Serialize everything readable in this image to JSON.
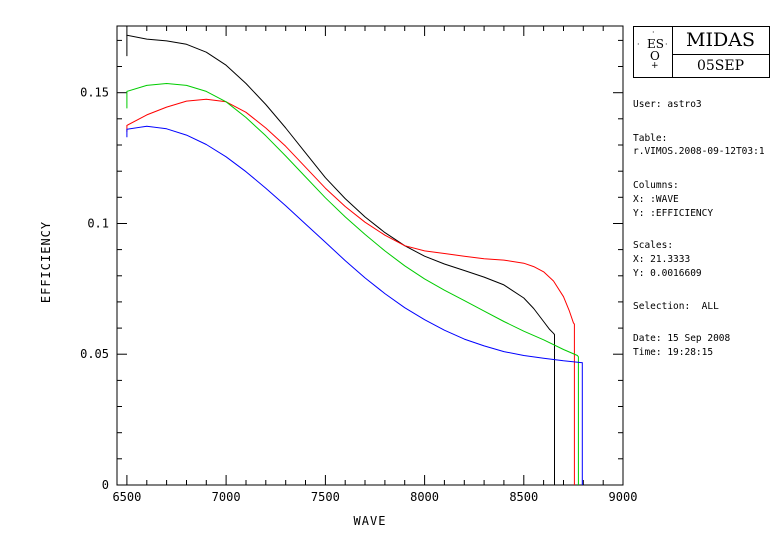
{
  "chart_data": {
    "type": "line",
    "title": "",
    "xlabel": "WAVE",
    "ylabel": "EFFICIENCY",
    "xlim": [
      6450,
      9000
    ],
    "ylim": [
      0,
      0.1755
    ],
    "xticks": [
      6500,
      7000,
      7500,
      8000,
      8500,
      9000
    ],
    "xtick_labels": [
      "6500",
      "7000",
      "7500",
      "8000",
      "8500",
      "9000"
    ],
    "yticks": [
      0,
      0.05,
      0.1,
      0.15
    ],
    "ytick_labels": [
      "0",
      "0.05",
      "0.1",
      "0.15"
    ],
    "grid": false,
    "series": [
      {
        "color": "#000000",
        "x": [
          6500,
          6500,
          6600,
          6700,
          6800,
          6900,
          7000,
          7100,
          7200,
          7300,
          7400,
          7500,
          7600,
          7700,
          7800,
          7900,
          8000,
          8100,
          8200,
          8300,
          8400,
          8500,
          8550,
          8600,
          8630,
          8650,
          8655,
          8655
        ],
        "y": [
          0.164,
          0.172,
          0.1705,
          0.1698,
          0.1685,
          0.1655,
          0.1605,
          0.1535,
          0.1455,
          0.1365,
          0.127,
          0.1175,
          0.1095,
          0.1025,
          0.0965,
          0.0915,
          0.0875,
          0.0845,
          0.082,
          0.0795,
          0.0765,
          0.0715,
          0.0675,
          0.0625,
          0.0595,
          0.058,
          0.0575,
          0
        ]
      },
      {
        "color": "#ff0000",
        "x": [
          6500,
          6500,
          6600,
          6700,
          6800,
          6900,
          7000,
          7100,
          7200,
          7300,
          7400,
          7500,
          7600,
          7700,
          7800,
          7900,
          8000,
          8100,
          8200,
          8300,
          8400,
          8500,
          8550,
          8600,
          8650,
          8700,
          8730,
          8750,
          8755,
          8755
        ],
        "y": [
          0.135,
          0.1375,
          0.1415,
          0.1445,
          0.1468,
          0.1475,
          0.1465,
          0.1425,
          0.1365,
          0.1295,
          0.1215,
          0.1135,
          0.1065,
          0.1005,
          0.0955,
          0.0915,
          0.0895,
          0.0885,
          0.0875,
          0.0865,
          0.086,
          0.0848,
          0.0835,
          0.0815,
          0.078,
          0.072,
          0.0665,
          0.062,
          0.0615,
          0
        ]
      },
      {
        "color": "#00cc00",
        "x": [
          6500,
          6500,
          6600,
          6700,
          6800,
          6900,
          7000,
          7100,
          7200,
          7300,
          7400,
          7500,
          7600,
          7700,
          7800,
          7900,
          8000,
          8100,
          8200,
          8300,
          8400,
          8500,
          8600,
          8700,
          8770,
          8775,
          8775
        ],
        "y": [
          0.144,
          0.1505,
          0.1528,
          0.1535,
          0.1528,
          0.1505,
          0.1465,
          0.1405,
          0.1335,
          0.1258,
          0.1178,
          0.1098,
          0.1025,
          0.0958,
          0.0895,
          0.0838,
          0.0788,
          0.0745,
          0.0705,
          0.0665,
          0.0625,
          0.0588,
          0.0555,
          0.0518,
          0.0495,
          0.049,
          0
        ]
      },
      {
        "color": "#0000ff",
        "x": [
          6500,
          6500,
          6600,
          6700,
          6800,
          6900,
          7000,
          7100,
          7200,
          7300,
          7400,
          7500,
          7600,
          7700,
          7800,
          7900,
          8000,
          8100,
          8200,
          8300,
          8400,
          8500,
          8600,
          8700,
          8790,
          8795,
          8795
        ],
        "y": [
          0.133,
          0.136,
          0.1372,
          0.1362,
          0.1338,
          0.1302,
          0.1255,
          0.1198,
          0.1135,
          0.1068,
          0.0998,
          0.0928,
          0.0858,
          0.0792,
          0.0732,
          0.0678,
          0.0632,
          0.0592,
          0.0558,
          0.0532,
          0.051,
          0.0495,
          0.0485,
          0.0475,
          0.0468,
          0.0468,
          0
        ]
      }
    ]
  },
  "logo": {
    "eso": "ES",
    "eso_o": "O",
    "title": "MIDAS",
    "date": "05SEP"
  },
  "info": {
    "user": "User: astro3",
    "table_label": "Table:",
    "table_value": "r.VIMOS.2008-09-12T03:1",
    "columns_label": "Columns:",
    "columns_x": "X: :WAVE",
    "columns_y": "Y: :EFFICIENCY",
    "scales_label": "Scales:",
    "scales_x": "X: 21.3333",
    "scales_y": "Y: 0.0016609",
    "selection": "Selection:  ALL",
    "date": "Date: 15 Sep 2008",
    "time": "Time: 19:28:15"
  }
}
